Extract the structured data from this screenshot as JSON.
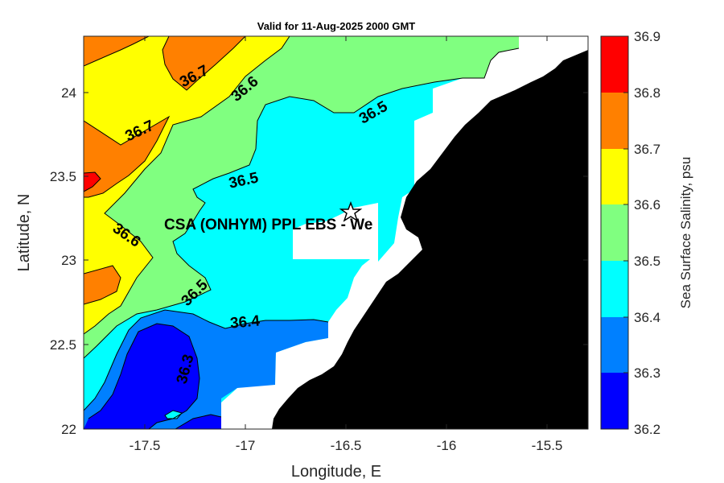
{
  "title": "Valid for 11-Aug-2025 2000 GMT",
  "xlabel": "Longitude, E",
  "ylabel": "Latitude, N",
  "colorbar_label": "Sea Surface Salinity, psu",
  "xticks": [
    "-17.5",
    "-17",
    "-16.5",
    "-16",
    "-15.5"
  ],
  "yticks": [
    "24",
    "23.5",
    "23",
    "22.5",
    "22"
  ],
  "cbticks": [
    "36.9",
    "36.8",
    "36.7",
    "36.6",
    "36.5",
    "36.4",
    "36.3",
    "36.2"
  ],
  "contour_labels": [
    "36.7",
    "36.6",
    "36.5",
    "36.7",
    "36.5",
    "36.6",
    "36.5",
    "36.4",
    "36.3"
  ],
  "site_label": "CSA (ONHYM) PPL EBS  - We",
  "colors": {
    "c362_363": "#0000ff",
    "c363_364": "#0080ff",
    "c364_365": "#00ffff",
    "c365_366": "#80ff80",
    "c366_367": "#ffff00",
    "c367_368": "#ff8000",
    "c368_369": "#ff0000",
    "land": "#000000",
    "nodata": "#ffffff"
  }
}
